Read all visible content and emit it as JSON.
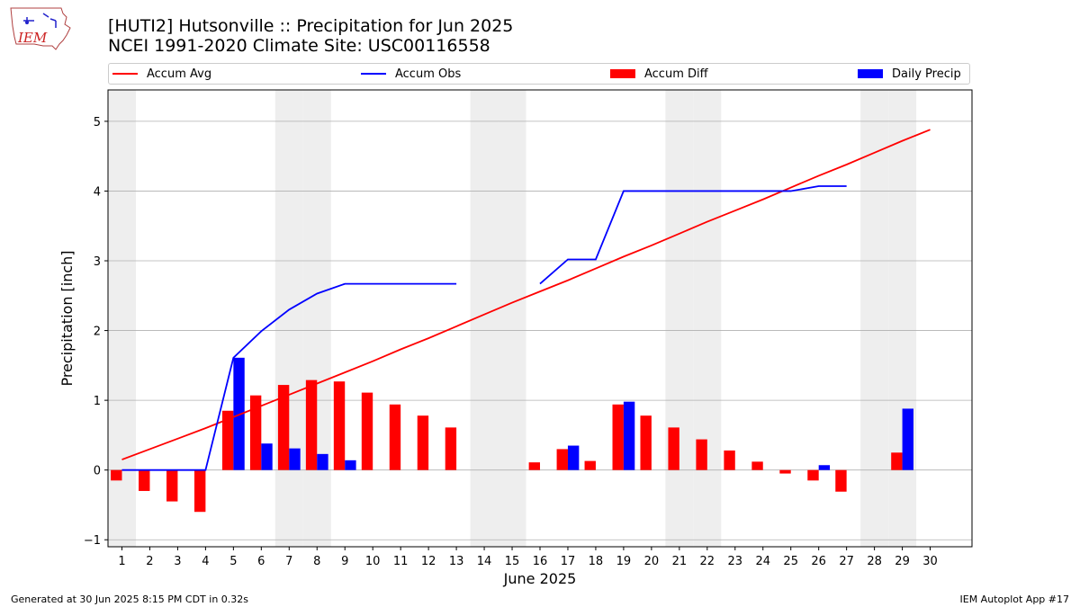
{
  "header": {
    "title_line1": "[HUTI2] Hutsonville :: Precipitation for Jun 2025",
    "title_line2": "NCEI 1991-2020 Climate Site: USC00116558",
    "logo_text": "IEM"
  },
  "legend": {
    "items": [
      {
        "label": "Accum Avg",
        "kind": "line",
        "color": "#ff0000"
      },
      {
        "label": "Accum Obs",
        "kind": "line",
        "color": "#0000ff"
      },
      {
        "label": "Accum Diff",
        "kind": "patch",
        "color": "#ff0000"
      },
      {
        "label": "Daily Precip",
        "kind": "patch",
        "color": "#0000ff"
      }
    ]
  },
  "footer": {
    "left": "Generated at 30 Jun 2025 8:15 PM CDT in 0.32s",
    "right": "IEM Autoplot App #17"
  },
  "chart_data": {
    "type": "bar",
    "xlabel": "June 2025",
    "ylabel": "Precipitation [inch]",
    "xlim": [
      0.5,
      31.5
    ],
    "ylim": [
      -1.1,
      5.45
    ],
    "yticks": [
      -1,
      0,
      1,
      2,
      3,
      4,
      5
    ],
    "x": [
      1,
      2,
      3,
      4,
      5,
      6,
      7,
      8,
      9,
      10,
      11,
      12,
      13,
      14,
      15,
      16,
      17,
      18,
      19,
      20,
      21,
      22,
      23,
      24,
      25,
      26,
      27,
      28,
      29,
      30
    ],
    "weekend_days": [
      1,
      7,
      8,
      14,
      15,
      21,
      22,
      28,
      29
    ],
    "grid": "y",
    "legend_position": "top",
    "colors": {
      "avg": "#ff0000",
      "obs": "#0000ff",
      "shade": "#eeeeee",
      "grid": "#b0b0b0"
    },
    "series": [
      {
        "name": "Accum Avg",
        "kind": "line",
        "values": [
          0.15,
          0.3,
          0.45,
          0.6,
          0.76,
          0.92,
          1.08,
          1.24,
          1.4,
          1.56,
          1.73,
          1.89,
          2.06,
          2.23,
          2.4,
          2.56,
          2.72,
          2.89,
          3.06,
          3.22,
          3.39,
          3.56,
          3.72,
          3.88,
          4.05,
          4.22,
          4.38,
          4.55,
          4.72,
          4.88
        ]
      },
      {
        "name": "Accum Obs",
        "kind": "line",
        "values": [
          0,
          0,
          0,
          0,
          1.61,
          1.99,
          2.3,
          2.53,
          2.67,
          2.67,
          2.67,
          2.67,
          2.67,
          null,
          null,
          2.67,
          3.02,
          3.02,
          4.0,
          4.0,
          4.0,
          4.0,
          4.0,
          4.0,
          4.0,
          4.07,
          4.07,
          null,
          null,
          null
        ]
      },
      {
        "name": "Accum Diff",
        "kind": "bar",
        "values": [
          -0.15,
          -0.3,
          -0.45,
          -0.6,
          0.85,
          1.07,
          1.22,
          1.29,
          1.27,
          1.11,
          0.94,
          0.78,
          0.61,
          null,
          null,
          0.11,
          0.3,
          0.13,
          0.94,
          0.78,
          0.61,
          0.44,
          0.28,
          0.12,
          -0.05,
          -0.15,
          -0.31,
          null,
          0.25,
          null
        ]
      },
      {
        "name": "Daily Precip",
        "kind": "bar",
        "values": [
          0,
          0,
          0,
          0,
          1.61,
          0.38,
          0.31,
          0.23,
          0.14,
          0,
          0,
          0,
          0,
          null,
          null,
          0,
          0.35,
          0,
          0.98,
          0,
          0,
          0,
          0,
          0,
          0,
          0.07,
          0,
          null,
          0.88,
          null
        ]
      }
    ]
  }
}
